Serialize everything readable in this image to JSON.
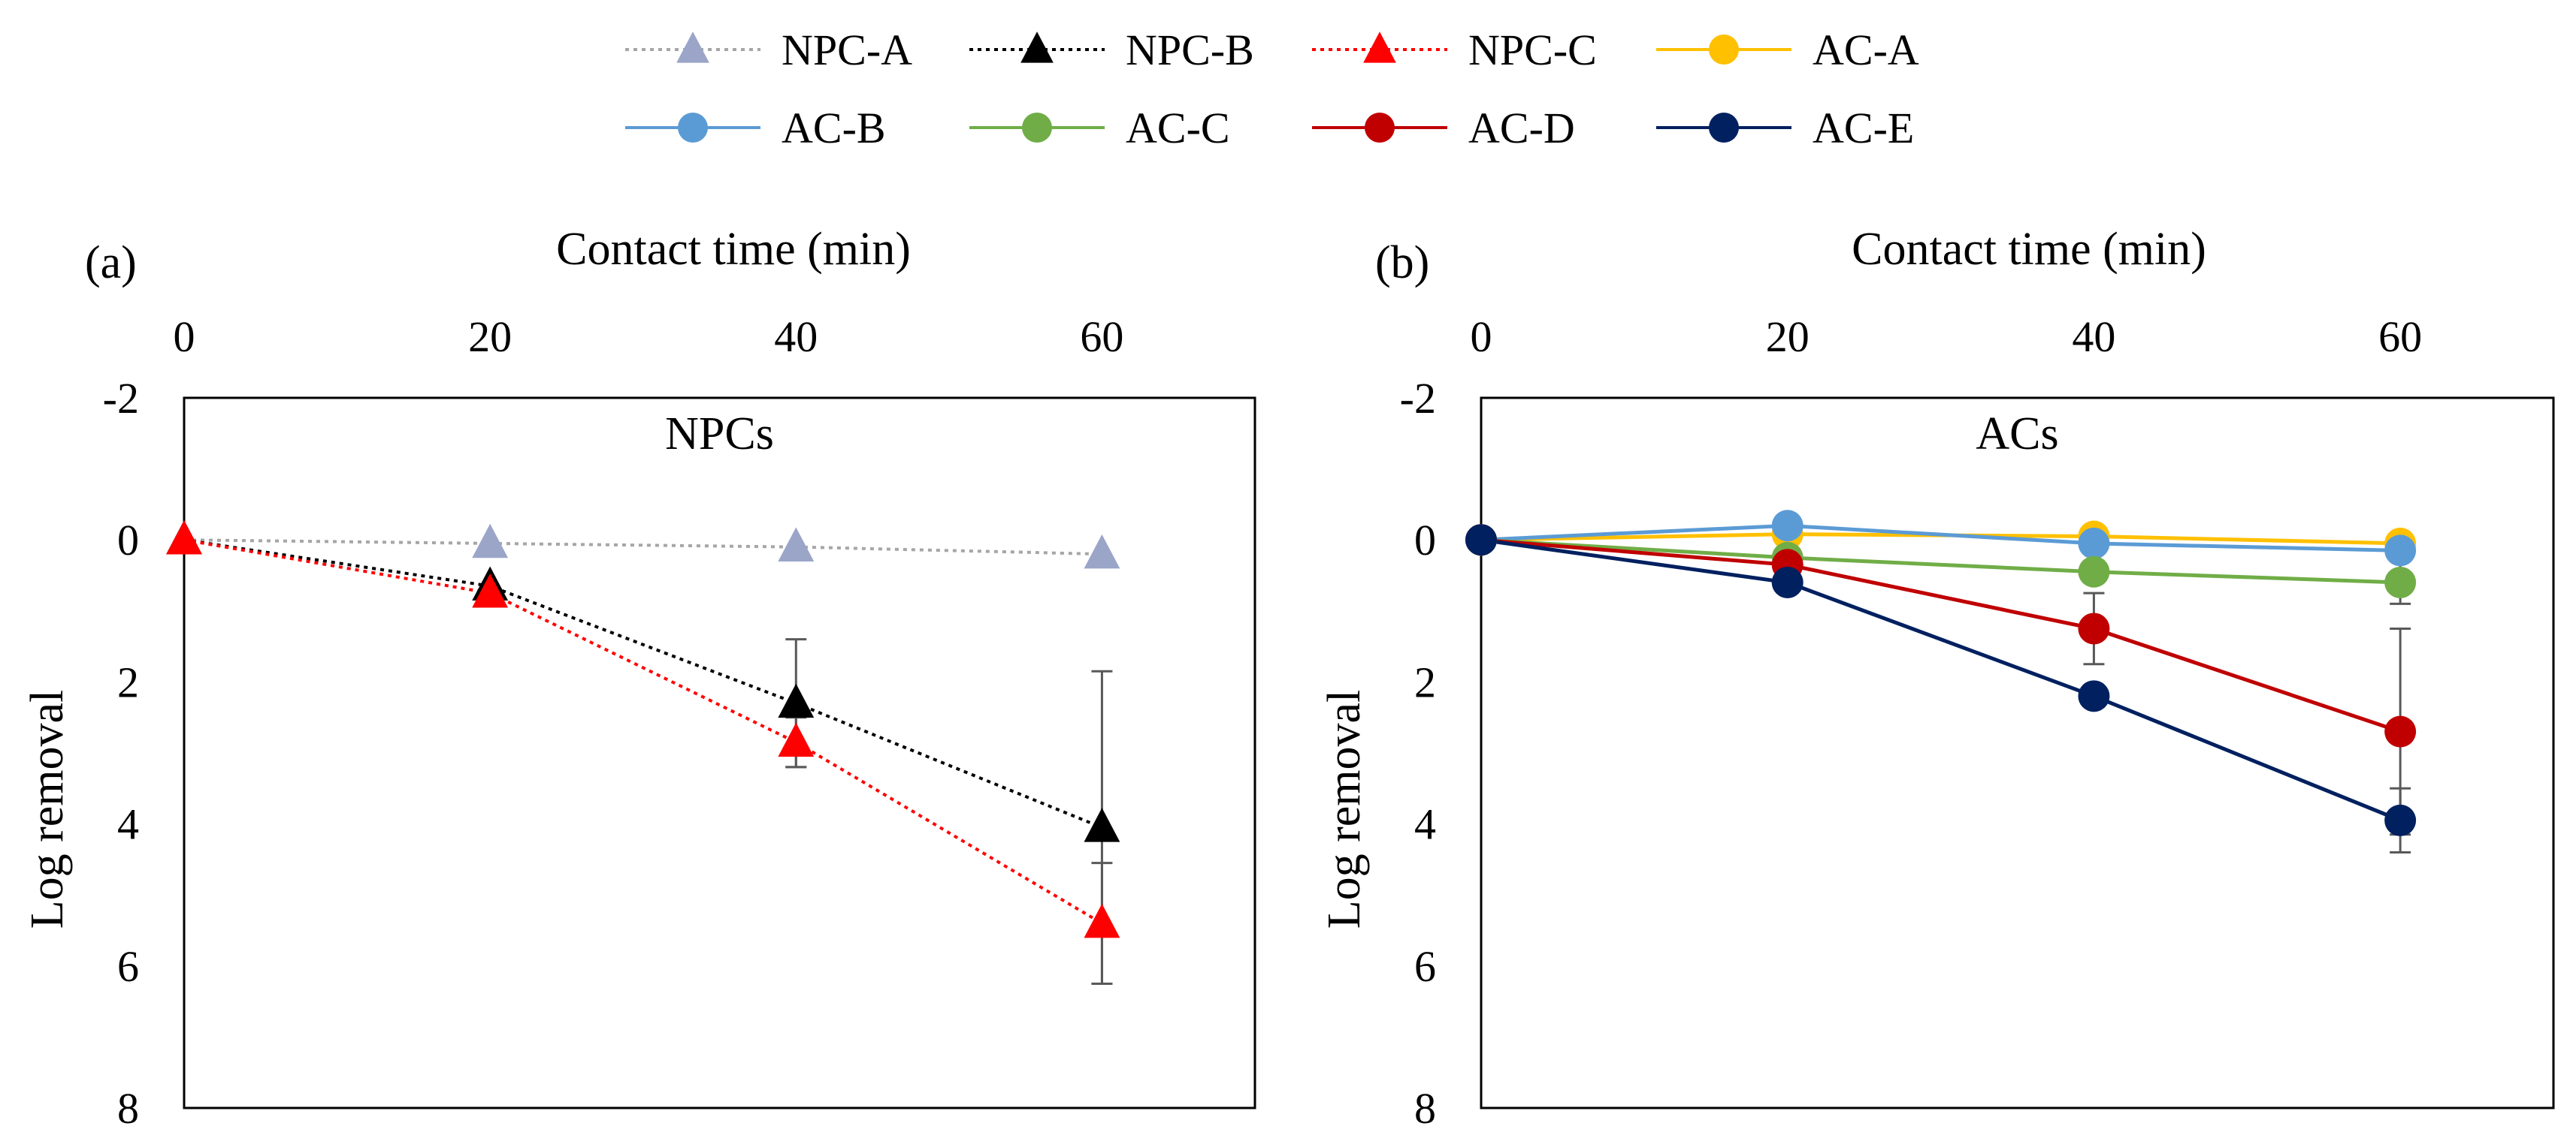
{
  "chart_data": [
    {
      "panel_label": "(a)",
      "type": "line",
      "title": "NPCs",
      "xlabel": "Contact time (min)",
      "ylabel": "Log removal",
      "x": [
        0,
        20,
        40,
        60
      ],
      "x_ticks": [
        "0",
        "20",
        "40",
        "60"
      ],
      "xlim": [
        0,
        70
      ],
      "y_ticks": [
        "-2",
        "0",
        "2",
        "4",
        "6",
        "8"
      ],
      "ylim": [
        -2,
        8
      ],
      "y_inverted": true,
      "x_axis_position": "top",
      "series": [
        {
          "name": "NPC-A",
          "values": [
            0,
            0.05,
            0.1,
            0.2
          ],
          "errors": [
            null,
            null,
            null,
            null
          ],
          "color": "#A6A6A6",
          "marker_color": "#9AA5C8",
          "marker": "triangle",
          "line": "dotted"
        },
        {
          "name": "NPC-B",
          "values": [
            0,
            0.65,
            2.3,
            4.05
          ],
          "errors": [
            null,
            null,
            0.9,
            2.2
          ],
          "color": "#000000",
          "marker_color": "#000000",
          "marker": "triangle",
          "line": "dotted"
        },
        {
          "name": "NPC-C",
          "values": [
            0,
            0.75,
            2.85,
            5.4
          ],
          "errors": [
            null,
            null,
            0.35,
            0.85
          ],
          "color": "#FF0000",
          "marker_color": "#FF0000",
          "marker": "triangle",
          "line": "dotted"
        }
      ]
    },
    {
      "panel_label": "(b)",
      "type": "line",
      "title": "ACs",
      "xlabel": "Contact time (min)",
      "ylabel": "Log removal",
      "x": [
        0,
        20,
        40,
        60
      ],
      "x_ticks": [
        "0",
        "20",
        "40",
        "60"
      ],
      "xlim": [
        0,
        70
      ],
      "y_ticks": [
        "-2",
        "0",
        "2",
        "4",
        "6",
        "8"
      ],
      "ylim": [
        -2,
        8
      ],
      "y_inverted": true,
      "x_axis_position": "top",
      "series": [
        {
          "name": "AC-A",
          "values": [
            0,
            -0.08,
            -0.05,
            0.05
          ],
          "errors": [
            null,
            null,
            null,
            null
          ],
          "color": "#FFC000",
          "marker_color": "#FFC000",
          "marker": "circle",
          "line": "solid"
        },
        {
          "name": "AC-B",
          "values": [
            0,
            -0.2,
            0.05,
            0.15
          ],
          "errors": [
            null,
            null,
            null,
            null
          ],
          "color": "#5B9BD5",
          "marker_color": "#5B9BD5",
          "marker": "circle",
          "line": "solid"
        },
        {
          "name": "AC-C",
          "values": [
            0,
            0.25,
            0.45,
            0.6
          ],
          "errors": [
            null,
            null,
            null,
            0.3
          ],
          "color": "#70AD47",
          "marker_color": "#70AD47",
          "marker": "circle",
          "line": "solid"
        },
        {
          "name": "AC-D",
          "values": [
            0,
            0.35,
            1.25,
            2.7
          ],
          "errors": [
            null,
            null,
            0.5,
            1.45
          ],
          "color": "#C00000",
          "marker_color": "#C00000",
          "marker": "circle",
          "line": "solid"
        },
        {
          "name": "AC-E",
          "values": [
            0,
            0.6,
            2.2,
            3.95
          ],
          "errors": [
            null,
            null,
            null,
            0.45
          ],
          "color": "#002060",
          "marker_color": "#002060",
          "marker": "circle",
          "line": "solid"
        }
      ]
    }
  ],
  "legend": {
    "position": "top-center",
    "items": [
      {
        "name": "NPC-A",
        "color": "#A6A6A6",
        "marker_color": "#9AA5C8",
        "marker": "triangle",
        "line": "dotted"
      },
      {
        "name": "NPC-B",
        "color": "#000000",
        "marker_color": "#000000",
        "marker": "triangle",
        "line": "dotted"
      },
      {
        "name": "NPC-C",
        "color": "#FF0000",
        "marker_color": "#FF0000",
        "marker": "triangle",
        "line": "dotted"
      },
      {
        "name": "AC-A",
        "color": "#FFC000",
        "marker_color": "#FFC000",
        "marker": "circle",
        "line": "solid"
      },
      {
        "name": "AC-B",
        "color": "#5B9BD5",
        "marker_color": "#5B9BD5",
        "marker": "circle",
        "line": "solid"
      },
      {
        "name": "AC-C",
        "color": "#70AD47",
        "marker_color": "#70AD47",
        "marker": "circle",
        "line": "solid"
      },
      {
        "name": "AC-D",
        "color": "#C00000",
        "marker_color": "#C00000",
        "marker": "circle",
        "line": "solid"
      },
      {
        "name": "AC-E",
        "color": "#002060",
        "marker_color": "#002060",
        "marker": "circle",
        "line": "solid"
      }
    ]
  },
  "colors": {
    "axis": "#000000",
    "error_bar": "#595959",
    "background": "#FFFFFF"
  }
}
